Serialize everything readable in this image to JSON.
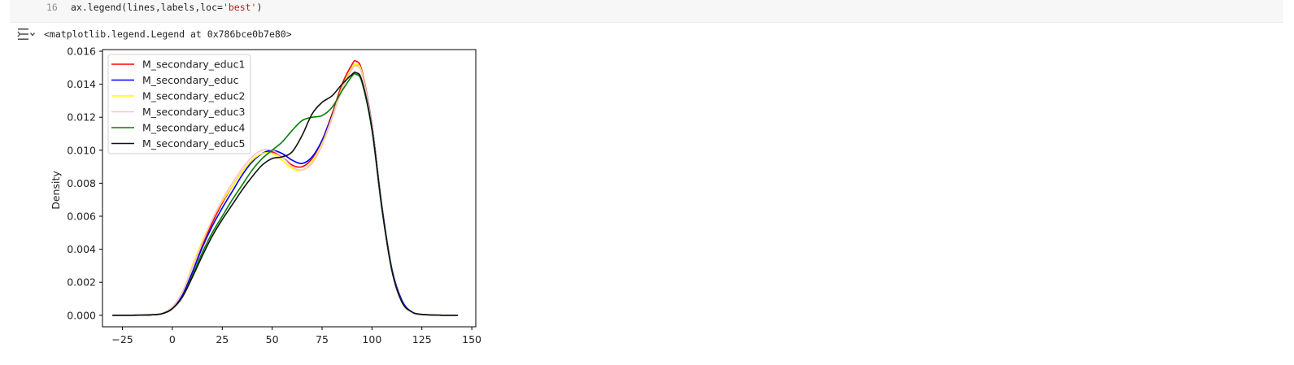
{
  "code_cell": {
    "line_number": "16",
    "code_prefix": "ax.legend(lines,labels,loc=",
    "code_string": "'best'",
    "code_suffix": ")"
  },
  "output": {
    "toggle_icon": "output-toggle-icon",
    "text": "<matplotlib.legend.Legend at 0x786bce0b7e80>"
  },
  "chart_data": {
    "type": "line",
    "title": "",
    "xlabel": "",
    "ylabel": "Density",
    "xlim": [
      -35,
      152
    ],
    "ylim": [
      -0.0007,
      0.0161
    ],
    "xticks": [
      -25,
      0,
      25,
      50,
      75,
      100,
      125,
      150
    ],
    "xtick_labels": [
      "−25",
      "0",
      "25",
      "50",
      "75",
      "100",
      "125",
      "150"
    ],
    "yticks": [
      0.0,
      0.002,
      0.004,
      0.006,
      0.008,
      0.01,
      0.012,
      0.014,
      0.016
    ],
    "ytick_labels": [
      "0.000",
      "0.002",
      "0.004",
      "0.006",
      "0.008",
      "0.010",
      "0.012",
      "0.014",
      "0.016"
    ],
    "legend_position": "upper-left",
    "grid": false,
    "x": [
      -30,
      -20,
      -10,
      -5,
      0,
      5,
      10,
      15,
      20,
      25,
      30,
      35,
      40,
      45,
      50,
      55,
      60,
      65,
      70,
      75,
      80,
      85,
      90,
      92,
      95,
      100,
      105,
      110,
      115,
      120,
      125,
      135,
      143
    ],
    "series": [
      {
        "name": "M_secondary_educ1",
        "color": "#ff0000",
        "values": [
          0.0,
          0.0,
          3e-05,
          0.0001,
          0.0004,
          0.0012,
          0.0026,
          0.0042,
          0.0056,
          0.0068,
          0.0078,
          0.0087,
          0.0094,
          0.0098,
          0.0099,
          0.0096,
          0.0091,
          0.009,
          0.0095,
          0.0106,
          0.0122,
          0.014,
          0.0152,
          0.0154,
          0.0148,
          0.0115,
          0.0065,
          0.0027,
          0.0008,
          0.0002,
          5e-05,
          0.0,
          0.0
        ]
      },
      {
        "name": "M_secondary_educ",
        "color": "#0000ff",
        "values": [
          0.0,
          0.0,
          3e-05,
          0.0001,
          0.0004,
          0.0012,
          0.0026,
          0.0041,
          0.0054,
          0.0065,
          0.0075,
          0.0085,
          0.0093,
          0.0098,
          0.01,
          0.0098,
          0.0094,
          0.0092,
          0.0096,
          0.0106,
          0.0121,
          0.0138,
          0.015,
          0.0152,
          0.0147,
          0.0115,
          0.0066,
          0.0028,
          0.0009,
          0.0002,
          5e-05,
          0.0,
          0.0
        ]
      },
      {
        "name": "M_secondary_educ2",
        "color": "#ffff00",
        "values": [
          0.0,
          0.0,
          4e-05,
          0.00012,
          0.0005,
          0.0014,
          0.003,
          0.0045,
          0.0058,
          0.0069,
          0.0078,
          0.0087,
          0.0094,
          0.0098,
          0.0098,
          0.0094,
          0.0089,
          0.0088,
          0.0093,
          0.0104,
          0.012,
          0.0138,
          0.015,
          0.0152,
          0.0147,
          0.0114,
          0.0065,
          0.0027,
          0.0008,
          0.0002,
          5e-05,
          0.0,
          0.0
        ]
      },
      {
        "name": "M_secondary_educ3",
        "color": "#ffc0cb",
        "values": [
          0.0,
          0.0,
          4e-05,
          0.00012,
          0.0005,
          0.0014,
          0.0029,
          0.0044,
          0.0058,
          0.007,
          0.008,
          0.0089,
          0.0096,
          0.01,
          0.01,
          0.0096,
          0.009,
          0.0088,
          0.0092,
          0.0103,
          0.0119,
          0.0137,
          0.0149,
          0.0151,
          0.0146,
          0.0114,
          0.0065,
          0.0027,
          0.0008,
          0.0002,
          5e-05,
          0.0,
          0.0
        ]
      },
      {
        "name": "M_secondary_educ4",
        "color": "#008000",
        "values": [
          0.0,
          0.0,
          3e-05,
          0.0001,
          0.0004,
          0.0011,
          0.0024,
          0.0038,
          0.005,
          0.006,
          0.007,
          0.0079,
          0.0088,
          0.0095,
          0.01,
          0.0105,
          0.0112,
          0.0118,
          0.012,
          0.0121,
          0.0126,
          0.0136,
          0.0145,
          0.0146,
          0.0141,
          0.0112,
          0.0064,
          0.0027,
          0.0008,
          0.0002,
          5e-05,
          0.0,
          0.0
        ]
      },
      {
        "name": "M_secondary_educ5",
        "color": "#111111",
        "values": [
          0.0,
          0.0,
          3e-05,
          0.0001,
          0.0004,
          0.0011,
          0.0023,
          0.0036,
          0.0048,
          0.0058,
          0.0067,
          0.0076,
          0.0084,
          0.0091,
          0.0095,
          0.0096,
          0.0099,
          0.0109,
          0.0122,
          0.0129,
          0.0133,
          0.014,
          0.0146,
          0.0147,
          0.0142,
          0.0113,
          0.0065,
          0.0027,
          0.0008,
          0.0002,
          5e-05,
          0.0,
          0.0
        ]
      }
    ]
  }
}
